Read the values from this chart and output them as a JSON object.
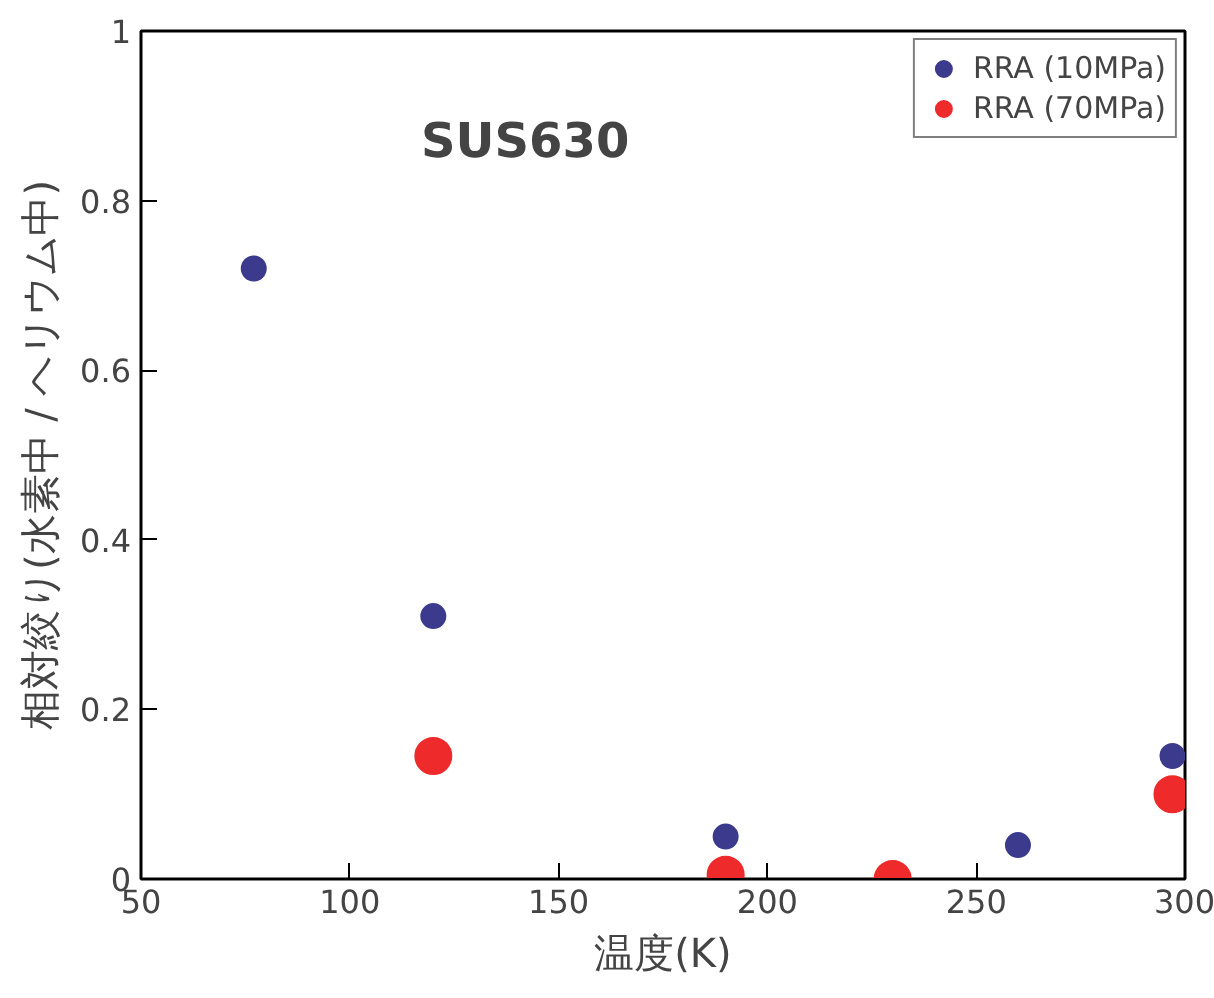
{
  "chart_data": {
    "type": "scatter",
    "title": "SUS630",
    "xlabel": "温度(K)",
    "ylabel": "相対絞り(水素中 / ヘリウム中)",
    "series": [
      {
        "name": "RRA (10MPa)",
        "color": "#3b3a8c",
        "x": [
          77,
          120,
          190,
          260,
          297
        ],
        "values": [
          0.72,
          0.31,
          0.05,
          0.04,
          0.145
        ]
      },
      {
        "name": "RRA (70MPa)",
        "color": "#ee2a2a",
        "x": [
          120,
          190,
          230,
          297
        ],
        "values": [
          0.145,
          0.005,
          0.0,
          0.1
        ]
      }
    ],
    "xlim": [
      50,
      300
    ],
    "ylim": [
      0,
      1
    ],
    "xticks": [
      50,
      100,
      150,
      200,
      250,
      300
    ],
    "yticks": [
      0,
      0.2,
      0.4,
      0.6,
      0.8,
      1
    ],
    "marker": "circle",
    "legend": "top right",
    "grid": false
  }
}
